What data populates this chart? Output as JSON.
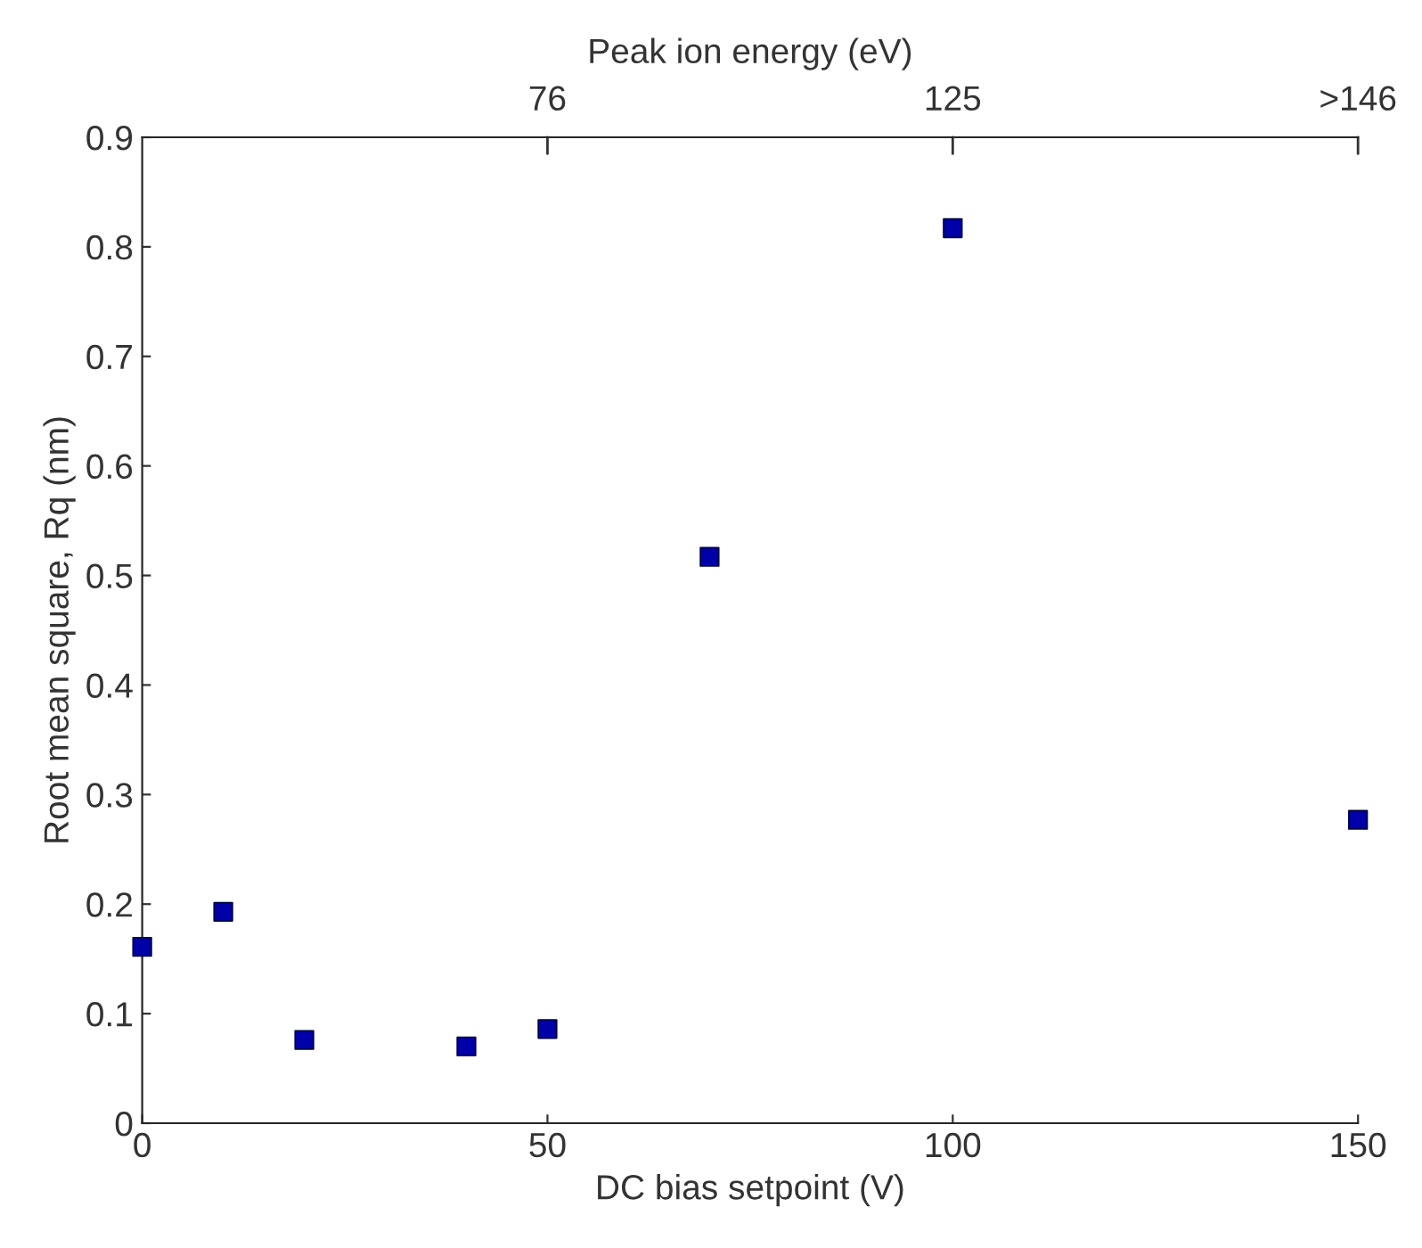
{
  "chart_data": {
    "type": "scatter",
    "xlabel": "DC bias setpoint (V)",
    "ylabel": "Root mean square, Rq (nm)",
    "x2label": "Peak ion energy (eV)",
    "x": [
      0,
      10,
      20,
      40,
      50,
      70,
      100,
      150
    ],
    "series": [
      {
        "color": "#0000a8",
        "values": [
          0.161,
          0.193,
          0.076,
          0.07,
          0.086,
          0.517,
          0.817,
          0.277
        ]
      }
    ],
    "marker": "square",
    "grid": false,
    "xlim": [
      0,
      150
    ],
    "xticks": [
      0,
      50,
      100,
      150
    ],
    "ylim": [
      0,
      0.9
    ],
    "yticks": [
      0,
      0.1,
      0.2,
      0.3,
      0.4,
      0.5,
      0.6,
      0.7,
      0.8,
      0.9
    ],
    "annotations": [
      "76",
      "125",
      ">146"
    ]
  }
}
